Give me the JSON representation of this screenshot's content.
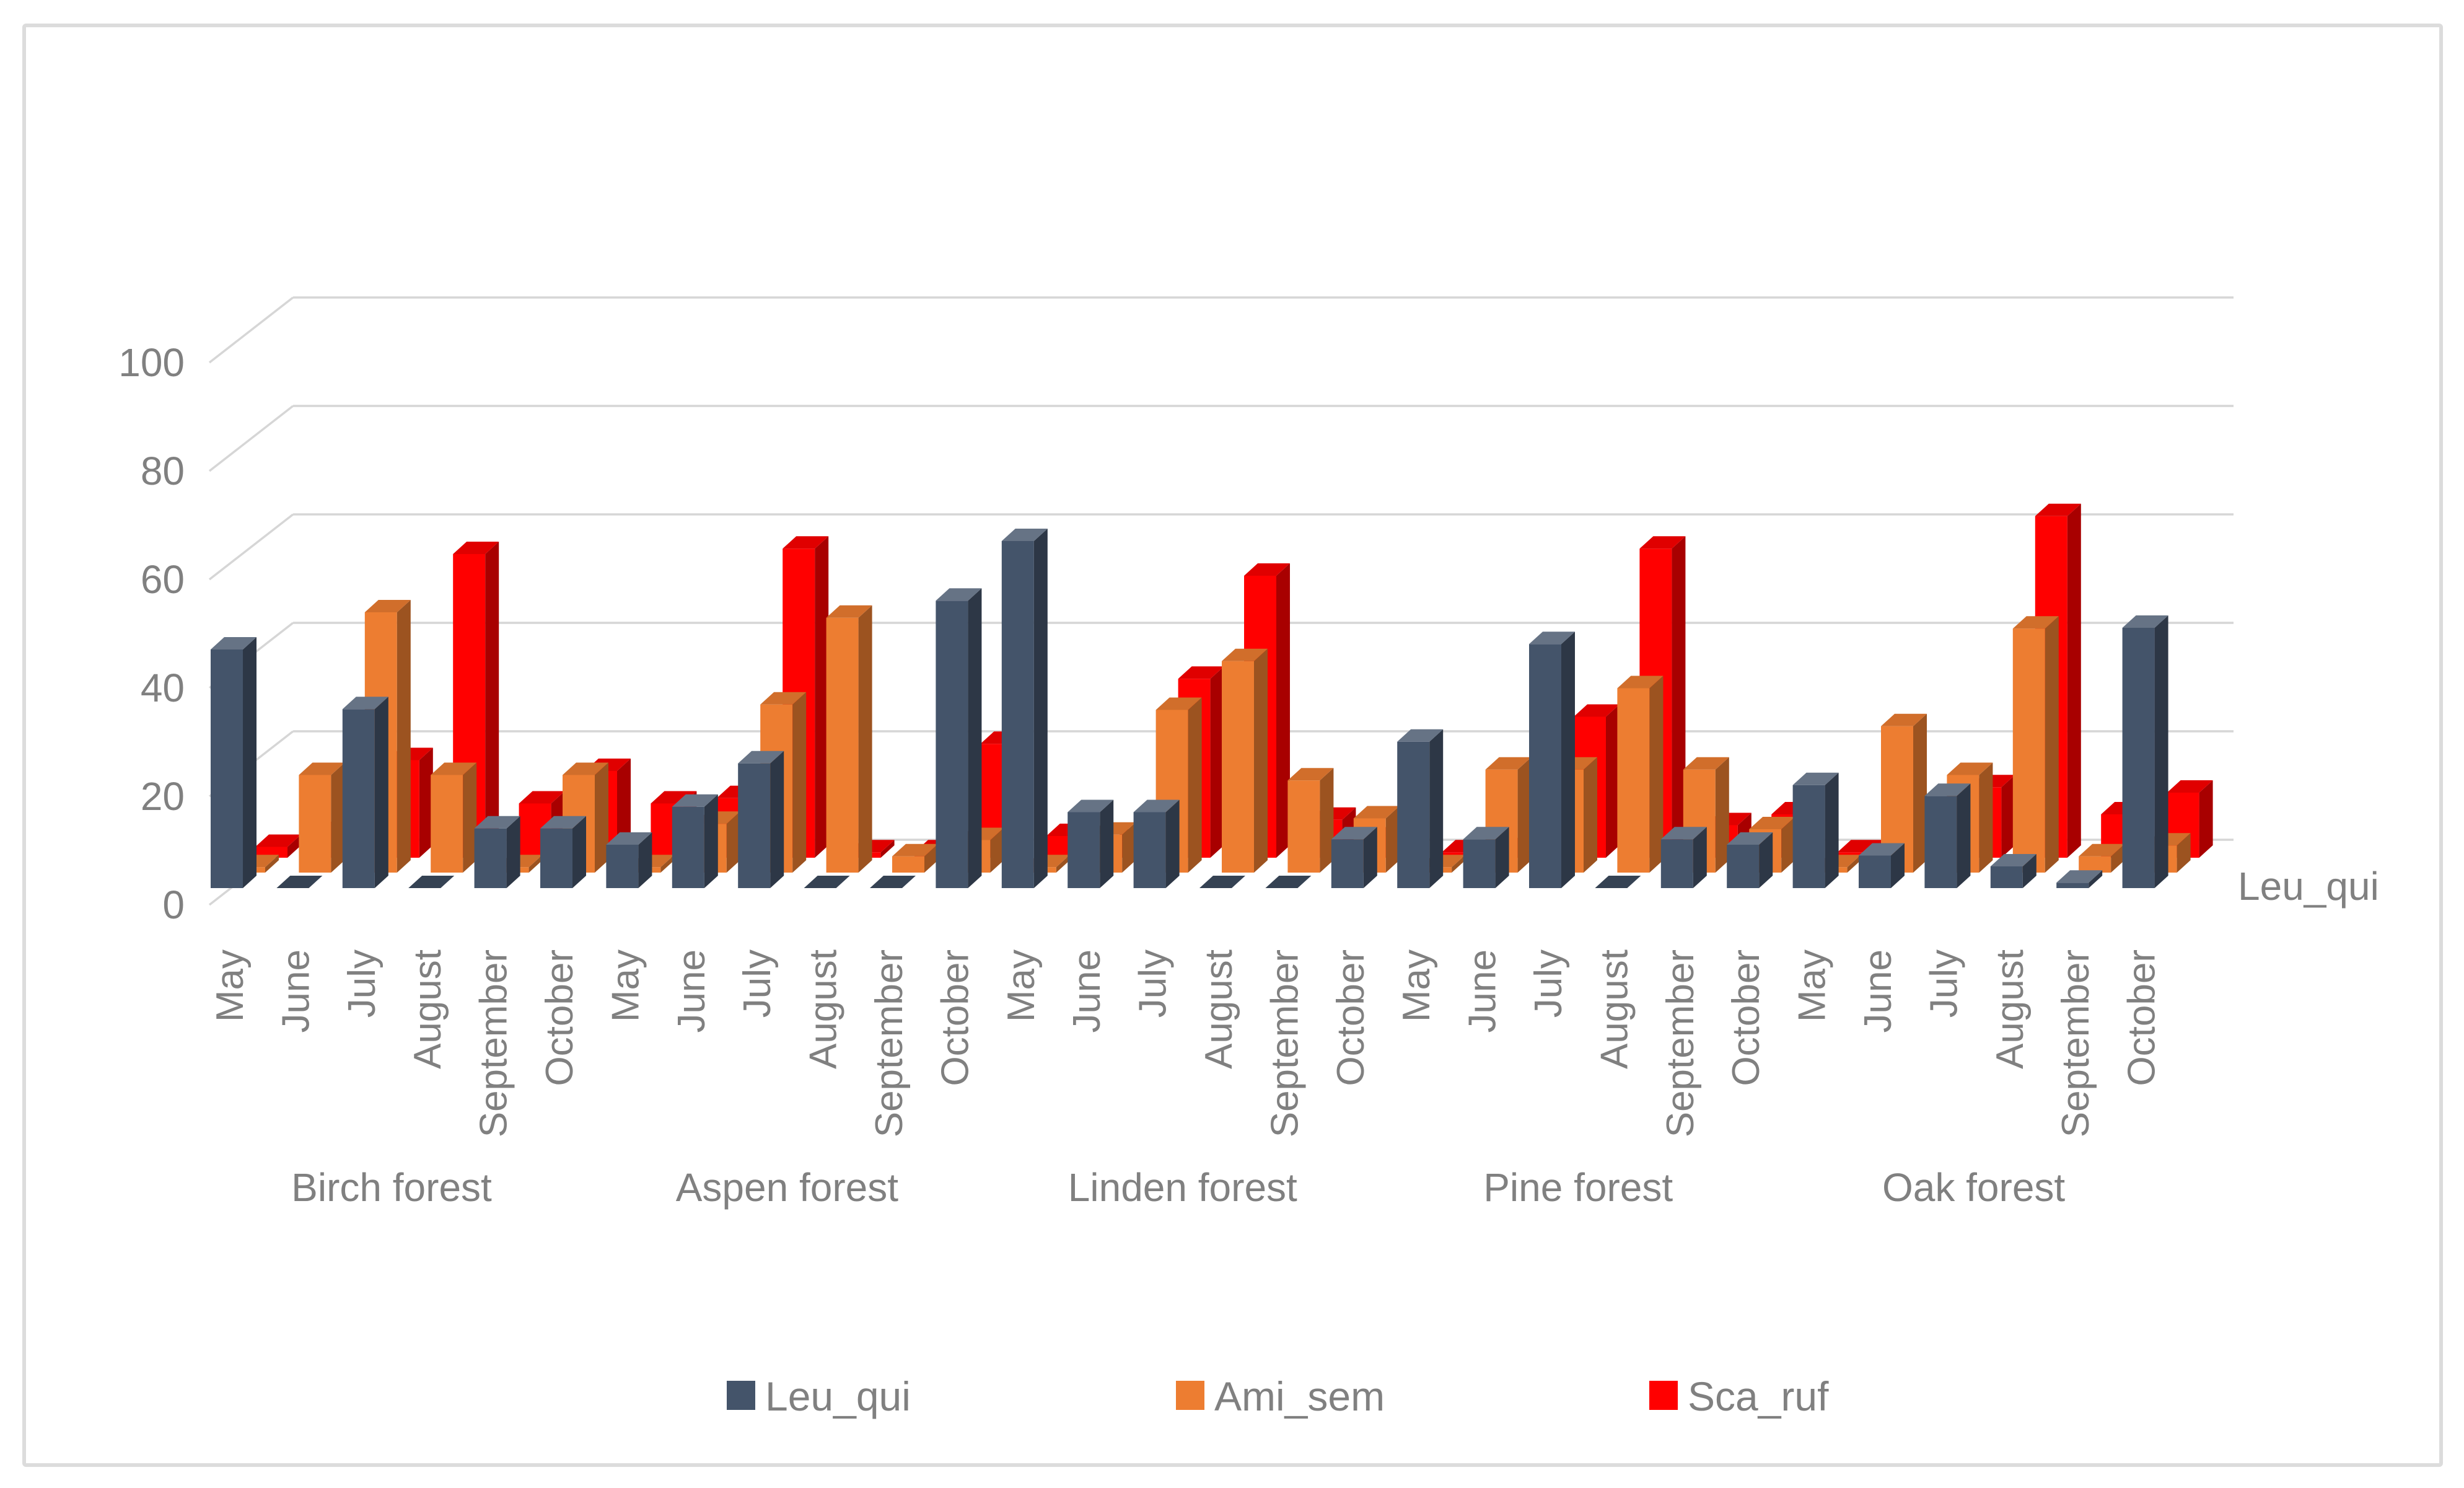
{
  "window": {
    "background": "#ffffff",
    "border_color": "#dcdcdc"
  },
  "chart_data": {
    "type": "bar",
    "variant": "3d-clustered-column",
    "title": "",
    "xlabel": "",
    "ylabel": "",
    "value_axis": {
      "min": 0,
      "max": 100,
      "tick_step": 20,
      "ticks": [
        0,
        20,
        40,
        60,
        80,
        100
      ]
    },
    "depth_axis_label": "Leu_qui",
    "grid": true,
    "legend_position": "bottom",
    "text_color": "#808080",
    "gridline_color": "#d6d6d6",
    "groups": [
      "Birch forest",
      "Aspen forest",
      "Linden forest",
      "Pine forest",
      "Oak forest"
    ],
    "months": [
      "May",
      "June",
      "July",
      "August",
      "September",
      "October"
    ],
    "series": [
      {
        "name": "Leu_qui",
        "color": "#44546A",
        "values": [
          [
            44,
            0,
            33,
            0,
            11,
            11
          ],
          [
            8,
            15,
            23,
            0,
            0,
            53
          ],
          [
            64,
            14,
            14,
            0,
            0,
            9
          ],
          [
            27,
            9,
            45,
            0,
            9,
            8
          ],
          [
            19,
            6,
            17,
            4,
            1,
            48
          ]
        ]
      },
      {
        "name": "Ami_sem",
        "color": "#ED7D31",
        "values": [
          [
            1,
            18,
            48,
            18,
            1,
            18
          ],
          [
            1,
            9,
            31,
            47,
            3,
            6
          ],
          [
            1,
            7,
            30,
            39,
            17,
            10
          ],
          [
            1,
            19,
            19,
            34,
            19,
            8
          ],
          [
            1,
            27,
            18,
            45,
            3,
            5
          ]
        ]
      },
      {
        "name": "Sca_ruf",
        "color": "#FF0000",
        "values": [
          [
            2,
            5,
            18,
            56,
            10,
            16
          ],
          [
            10,
            11,
            57,
            1,
            1,
            21
          ],
          [
            4,
            3,
            33,
            52,
            7,
            4
          ],
          [
            1,
            2,
            26,
            57,
            6,
            8
          ],
          [
            1,
            4,
            13,
            63,
            8,
            12
          ]
        ]
      }
    ]
  }
}
